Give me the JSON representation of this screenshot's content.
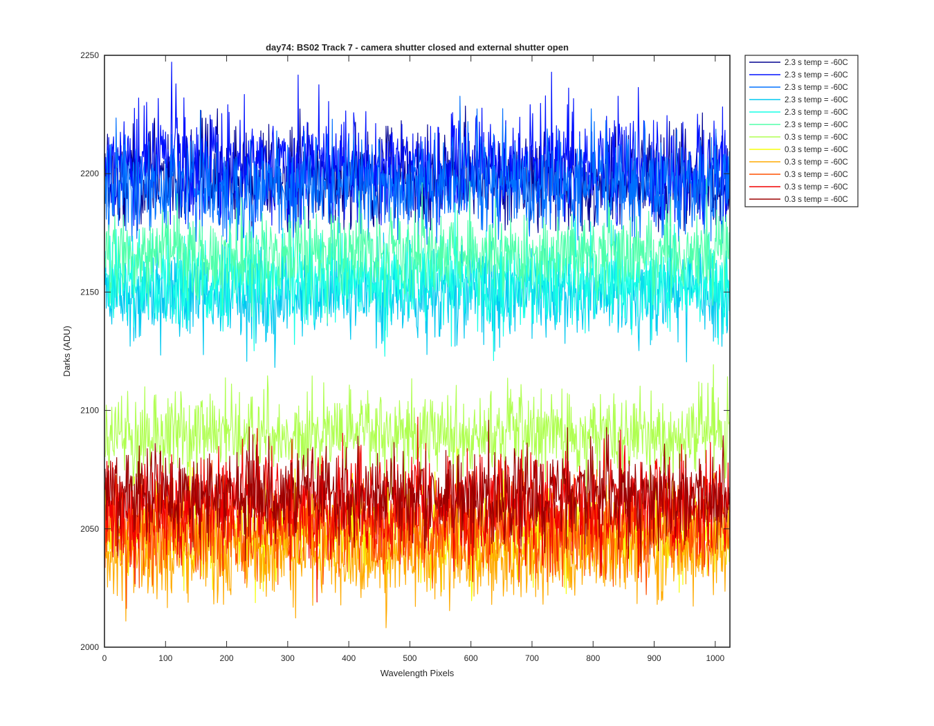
{
  "chart_data": {
    "type": "line",
    "title": "day74: BS02  Track 7 - camera shutter closed and external shutter open",
    "xlabel": "Wavelength Pixels",
    "ylabel": "Darks (ADU)",
    "xlim": [
      0,
      1024
    ],
    "ylim": [
      2000,
      2250
    ],
    "x_ticks": [
      0,
      100,
      200,
      300,
      400,
      500,
      600,
      700,
      800,
      900,
      1000
    ],
    "x_tick_labels": [
      "0",
      "100",
      "200",
      "300",
      "400",
      "500",
      "600",
      "700",
      "800",
      "900",
      "1000"
    ],
    "y_ticks": [
      2000,
      2050,
      2100,
      2150,
      2200,
      2250
    ],
    "y_tick_labels": [
      "2000",
      "2050",
      "2100",
      "2150",
      "2200",
      "2250"
    ],
    "grid": false,
    "legend_position": "outside-top-right",
    "x_points": 1024,
    "series": [
      {
        "name": "2.3 s temp = -60C",
        "color": "#00008f",
        "mean": 2198,
        "spread": 11,
        "min": 2175,
        "max": 2230
      },
      {
        "name": "2.3 s temp = -60C",
        "color": "#0010ff",
        "mean": 2203,
        "spread": 12,
        "min": 2178,
        "max": 2248
      },
      {
        "name": "2.3 s temp = -60C",
        "color": "#0070ff",
        "mean": 2195,
        "spread": 11,
        "min": 2170,
        "max": 2235
      },
      {
        "name": "2.3 s temp = -60C",
        "color": "#00c8f0",
        "mean": 2150,
        "spread": 10,
        "min": 2118,
        "max": 2185
      },
      {
        "name": "2.3 s temp = -60C",
        "color": "#14ffe6",
        "mean": 2155,
        "spread": 10,
        "min": 2110,
        "max": 2190
      },
      {
        "name": "2.3 s temp = -60C",
        "color": "#50ffaa",
        "mean": 2166,
        "spread": 9,
        "min": 2130,
        "max": 2198
      },
      {
        "name": "0.3 s temp = -60C",
        "color": "#afff50",
        "mean": 2090,
        "spread": 9,
        "min": 2060,
        "max": 2128
      },
      {
        "name": "0.3 s temp = -60C",
        "color": "#f5ff0a",
        "mean": 2049,
        "spread": 10,
        "min": 2002,
        "max": 2085
      },
      {
        "name": "0.3 s temp = -60C",
        "color": "#ffaa00",
        "mean": 2040,
        "spread": 10,
        "min": 2006,
        "max": 2070
      },
      {
        "name": "0.3 s temp = -60C",
        "color": "#ff5000",
        "mean": 2050,
        "spread": 10,
        "min": 2003,
        "max": 2090
      },
      {
        "name": "0.3 s temp = -60C",
        "color": "#f00000",
        "mean": 2060,
        "spread": 11,
        "min": 2003,
        "max": 2118
      },
      {
        "name": "0.3 s temp = -60C",
        "color": "#9b0000",
        "mean": 2064,
        "spread": 10,
        "min": 2025,
        "max": 2135
      }
    ]
  }
}
